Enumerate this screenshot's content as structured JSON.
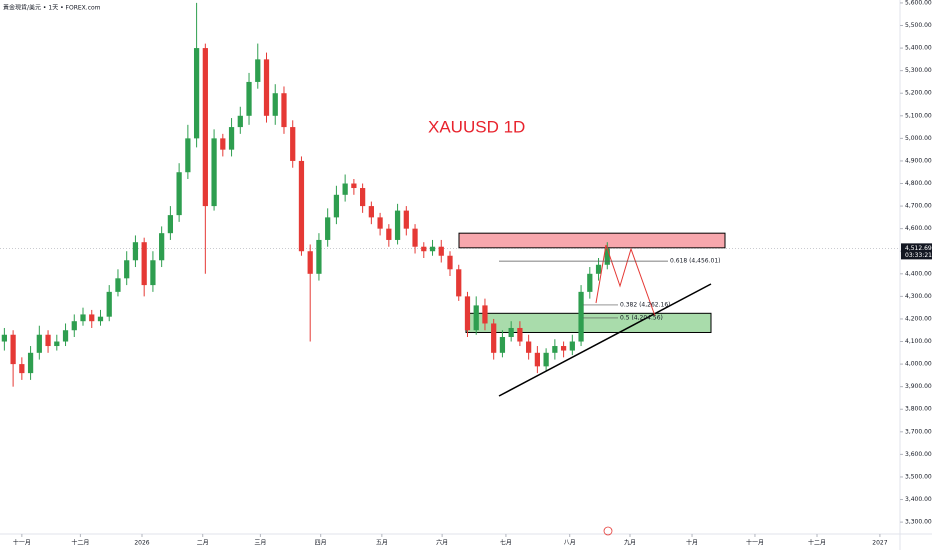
{
  "chart_data": {
    "type": "candlestick",
    "title": "XAUUSD 1D",
    "subtitle": "黃金現貨/美元 • 1天 • FOREX.com",
    "up_color": "#2e9e4f",
    "down_color": "#e53935",
    "x": [
      0,
      1,
      2,
      3,
      4,
      5,
      6,
      7,
      8,
      9,
      10,
      11,
      12,
      13,
      14,
      15,
      16,
      17,
      18,
      19,
      20,
      21,
      22,
      23,
      24,
      25,
      26,
      27,
      28,
      29,
      30,
      31,
      32,
      33,
      34,
      35,
      36,
      37,
      38,
      39,
      40,
      41,
      42,
      43,
      44,
      45,
      46,
      47,
      48,
      49,
      50,
      51,
      52,
      53,
      54,
      55,
      56,
      57,
      58,
      59,
      60,
      61,
      62,
      63,
      64,
      65,
      66,
      67,
      68,
      69
    ],
    "open": [
      4100,
      4130,
      4000,
      3960,
      4050,
      4130,
      4080,
      4100,
      4150,
      4190,
      4220,
      4190,
      4210,
      4320,
      4380,
      4460,
      4540,
      4350,
      4460,
      4580,
      4660,
      4850,
      5000,
      5400,
      4700,
      5000,
      4950,
      5050,
      5100,
      5250,
      5350,
      5100,
      5200,
      5050,
      4900,
      4500,
      4400,
      4550,
      4650,
      4750,
      4800,
      4780,
      4700,
      4650,
      4600,
      4550,
      4680,
      4600,
      4520,
      4500,
      4520,
      4480,
      4420,
      4300,
      4150,
      4260,
      4180,
      4050,
      4120,
      4160,
      4100,
      4050,
      3990,
      4050,
      4080,
      4060,
      4100,
      4320,
      4400,
      4440
    ],
    "high": [
      4160,
      4150,
      4030,
      4080,
      4170,
      4150,
      4130,
      4180,
      4220,
      4250,
      4240,
      4240,
      4350,
      4420,
      4500,
      4570,
      4560,
      4500,
      4610,
      4700,
      4890,
      5060,
      5600,
      5420,
      5040,
      5020,
      5090,
      5140,
      5290,
      5420,
      5380,
      5240,
      5230,
      5080,
      4920,
      4530,
      4580,
      4690,
      4790,
      4840,
      4820,
      4800,
      4720,
      4670,
      4620,
      4710,
      4700,
      4620,
      4540,
      4550,
      4550,
      4500,
      4440,
      4320,
      4300,
      4290,
      4200,
      4150,
      4190,
      4190,
      4130,
      4080,
      4070,
      4110,
      4100,
      4130,
      4350,
      4430,
      4470,
      4540
    ],
    "low": [
      4060,
      3900,
      3930,
      3930,
      4020,
      4050,
      4060,
      4080,
      4120,
      4170,
      4160,
      4170,
      4190,
      4300,
      4350,
      4430,
      4300,
      4320,
      4430,
      4550,
      4630,
      4820,
      4960,
      4400,
      4680,
      4920,
      4920,
      5020,
      5060,
      5220,
      5070,
      5060,
      5020,
      4870,
      4480,
      4100,
      4370,
      4520,
      4620,
      4720,
      4750,
      4670,
      4620,
      4570,
      4520,
      4530,
      4570,
      4490,
      4470,
      4480,
      4450,
      4390,
      4280,
      4120,
      4130,
      4150,
      4020,
      4030,
      4100,
      4080,
      4020,
      3960,
      3970,
      4020,
      4030,
      4040,
      4080,
      4290,
      4370,
      4420
    ],
    "close": [
      4130,
      4000,
      3960,
      4050,
      4130,
      4080,
      4100,
      4150,
      4190,
      4220,
      4190,
      4210,
      4320,
      4380,
      4460,
      4540,
      4350,
      4460,
      4580,
      4660,
      4850,
      5000,
      5400,
      4700,
      5000,
      4950,
      5050,
      5100,
      5250,
      5350,
      5100,
      5200,
      5050,
      4900,
      4500,
      4400,
      4550,
      4650,
      4750,
      4800,
      4780,
      4700,
      4650,
      4600,
      4550,
      4680,
      4600,
      4520,
      4500,
      4520,
      4480,
      4420,
      4300,
      4150,
      4260,
      4180,
      4050,
      4120,
      4160,
      4100,
      4050,
      3990,
      4050,
      4080,
      4060,
      4100,
      4320,
      4400,
      4440,
      4512.69
    ],
    "xlim": [
      -0.5,
      102.5
    ],
    "xticks": [
      {
        "value": 2.0,
        "label": "十一月"
      },
      {
        "value": 8.7,
        "label": "十二月"
      },
      {
        "value": 15.75,
        "label": "2026"
      },
      {
        "value": 22.7,
        "label": "二月"
      },
      {
        "value": 29.3,
        "label": "三月"
      },
      {
        "value": 36.2,
        "label": "四月"
      },
      {
        "value": 43.2,
        "label": "五月"
      },
      {
        "value": 50.1,
        "label": "六月"
      },
      {
        "value": 57.4,
        "label": "七月"
      },
      {
        "value": 64.7,
        "label": "八月"
      },
      {
        "value": 71.6,
        "label": "九月"
      },
      {
        "value": 78.7,
        "label": "十月"
      },
      {
        "value": 85.9,
        "label": "十一月"
      },
      {
        "value": 93.0,
        "label": "十二月"
      },
      {
        "value": 100.2,
        "label": "2027"
      }
    ],
    "ylim": [
      3265,
      5613
    ],
    "yticks": [
      {
        "value": 3300,
        "label": "3,300.00"
      },
      {
        "value": 3400,
        "label": "3,400.00"
      },
      {
        "value": 3500,
        "label": "3,500.00"
      },
      {
        "value": 3600,
        "label": "3,600.00"
      },
      {
        "value": 3700,
        "label": "3,700.00"
      },
      {
        "value": 3800,
        "label": "3,800.00"
      },
      {
        "value": 3900,
        "label": "3,900.00"
      },
      {
        "value": 4000,
        "label": "4,000.00"
      },
      {
        "value": 4100,
        "label": "4,100.00"
      },
      {
        "value": 4200,
        "label": "4,200.00"
      },
      {
        "value": 4300,
        "label": "4,300.00"
      },
      {
        "value": 4400,
        "label": "4,400.00"
      },
      {
        "value": 4500,
        "label": "4,500.00"
      },
      {
        "value": 4600,
        "label": "4,600.00"
      },
      {
        "value": 4700,
        "label": "4,700.00"
      },
      {
        "value": 4800,
        "label": "4,800.00"
      },
      {
        "value": 4900,
        "label": "4,900.00"
      },
      {
        "value": 5000,
        "label": "5,000.00"
      },
      {
        "value": 5100,
        "label": "5,100.00"
      },
      {
        "value": 5200,
        "label": "5,200.00"
      },
      {
        "value": 5300,
        "label": "5,300.00"
      },
      {
        "value": 5400,
        "label": "5,400.00"
      },
      {
        "value": 5500,
        "label": "5,500.00"
      },
      {
        "value": 5600,
        "label": "5,600.00"
      }
    ],
    "last_price": {
      "value": 4512.69,
      "label": "4,512.69"
    },
    "countdown": "03:33:21",
    "fib_levels": [
      {
        "value": 4456.01,
        "label": "0.618 (4,456.01)"
      },
      {
        "value": 4262.16,
        "label": "0.382 (4,262.16)"
      },
      {
        "value": 4204.56,
        "label": "0.5 (4,204.56)"
      }
    ],
    "zones": [
      {
        "low": 4515,
        "high": 4580,
        "color": "#f7a7ad"
      },
      {
        "low": 4140,
        "high": 4225,
        "color": "#a9dcab"
      }
    ]
  }
}
